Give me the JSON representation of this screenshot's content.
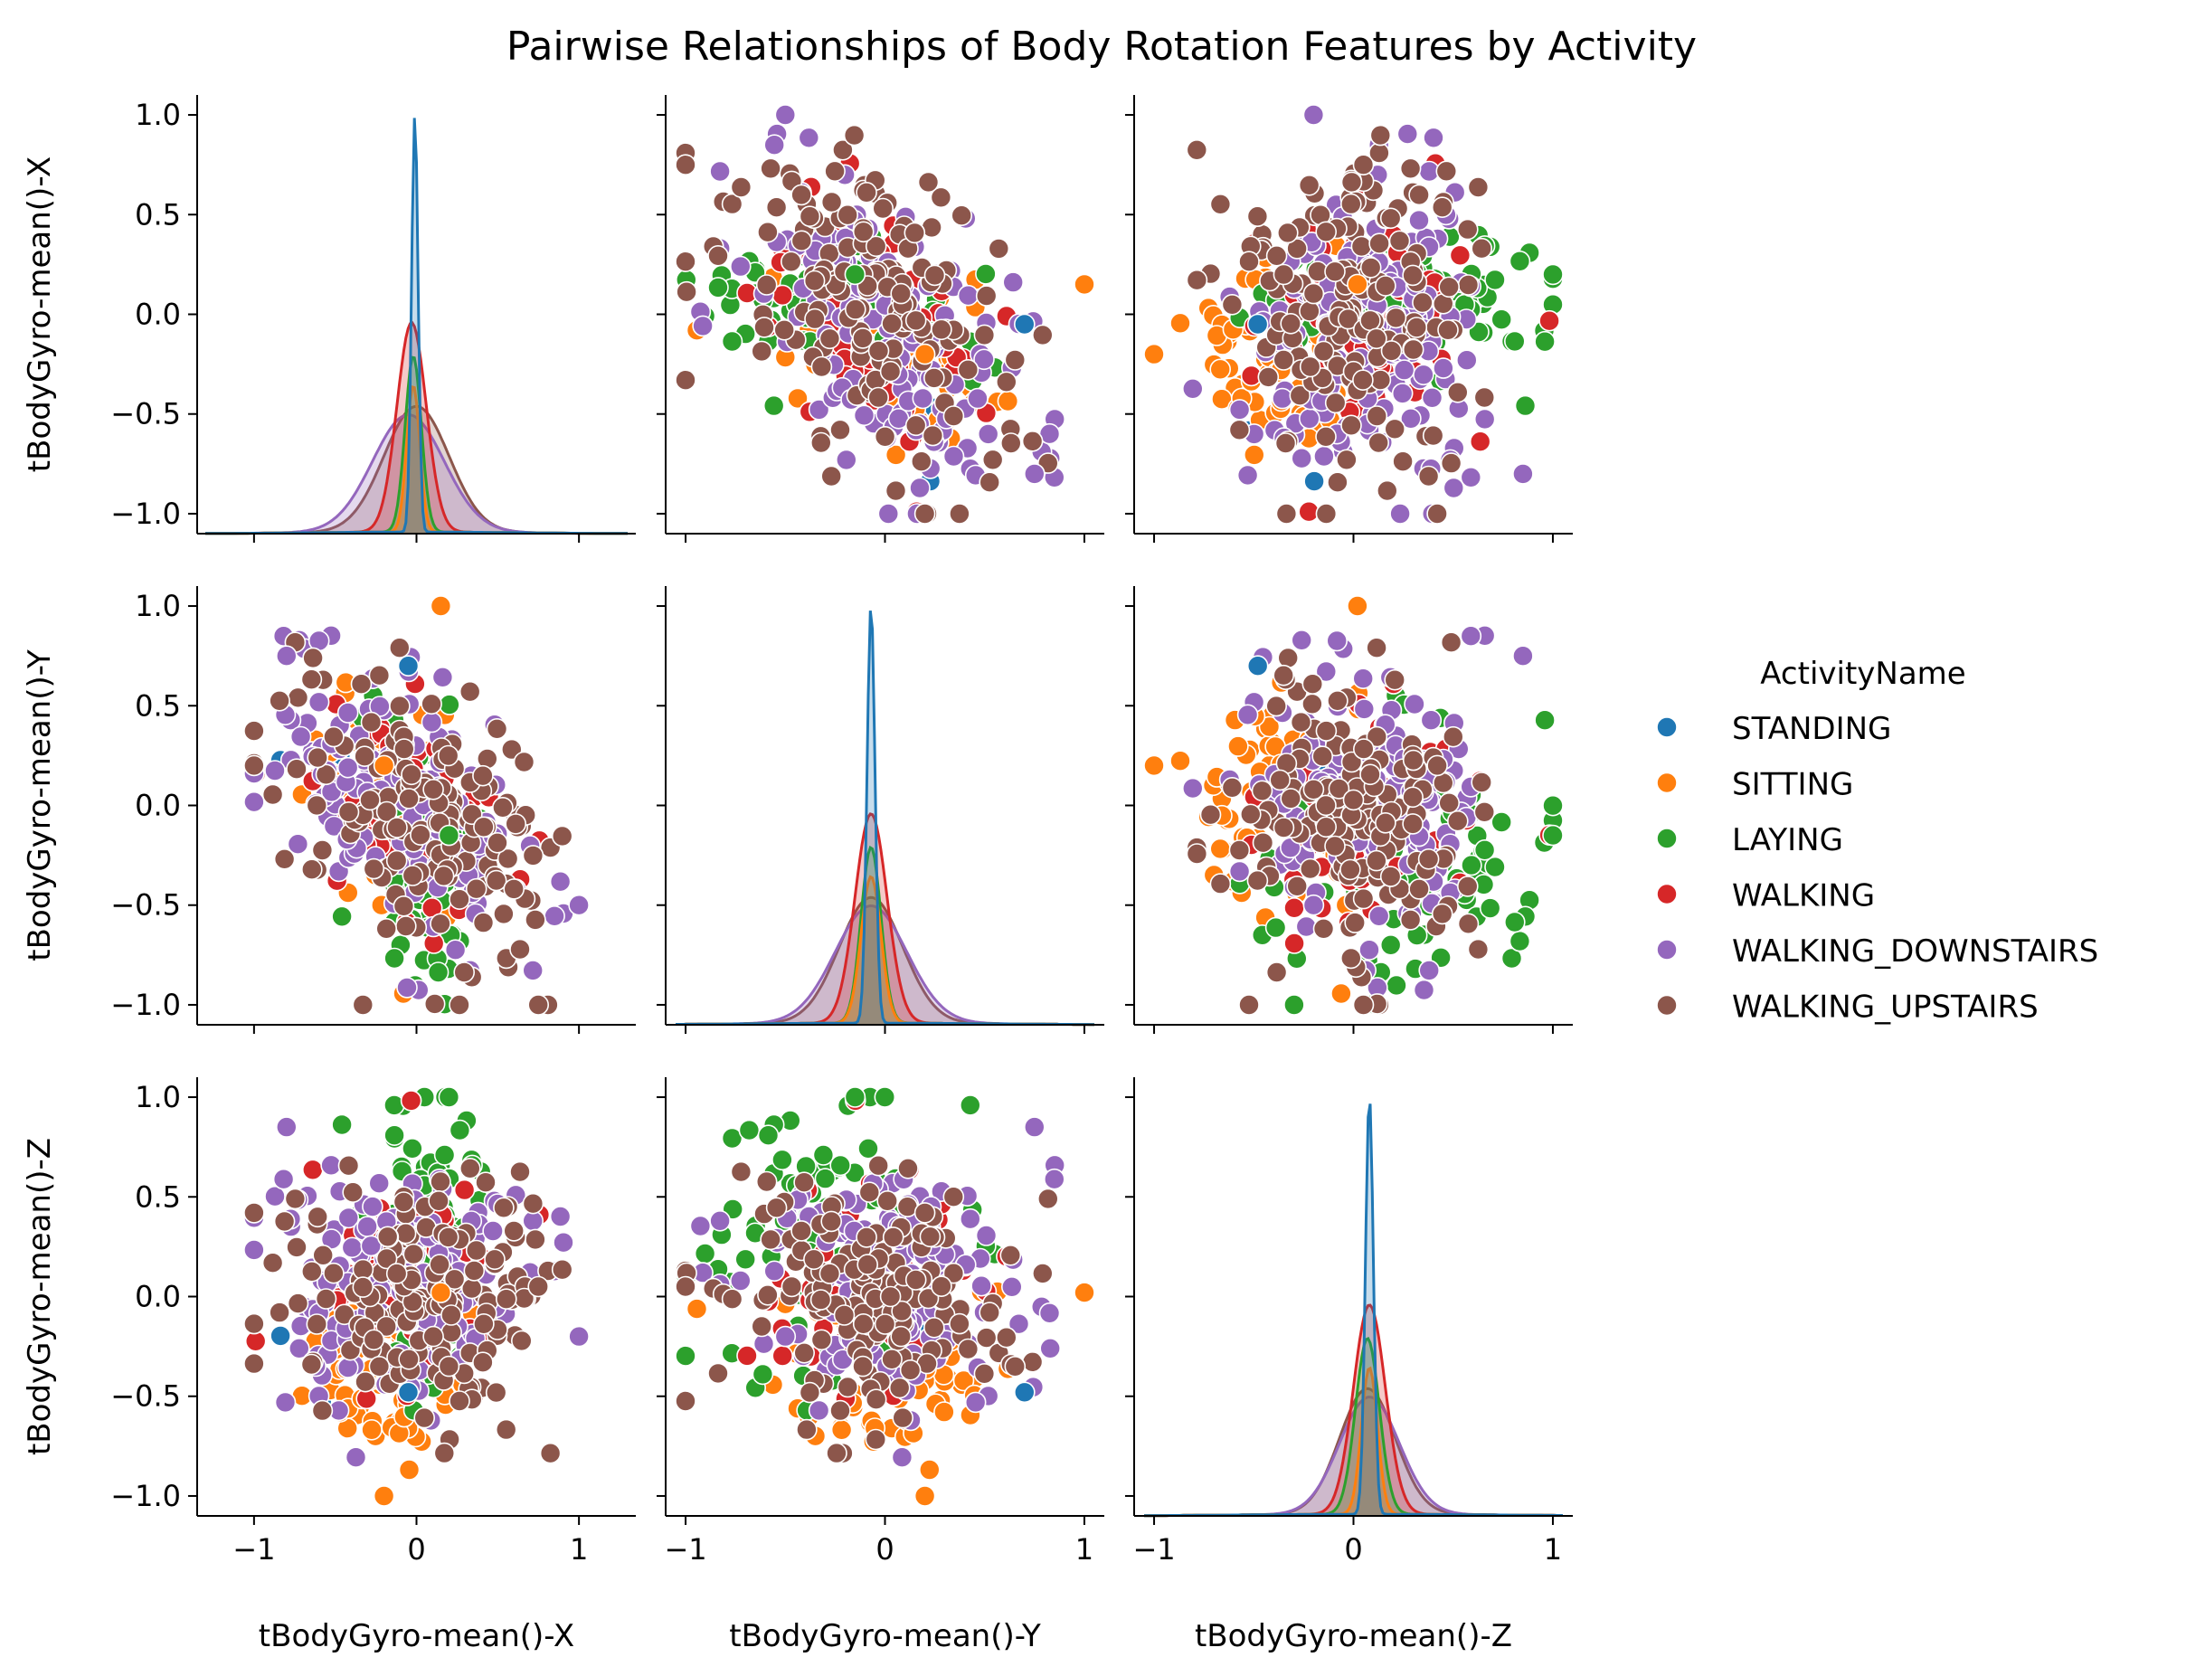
{
  "chart_data": {
    "type": "scatter",
    "subtype": "pairplot",
    "title": "Pairwise Relationships of Body Rotation Features by Activity",
    "variables": [
      "tBodyGyro-mean()-X",
      "tBodyGyro-mean()-Y",
      "tBodyGyro-mean()-Z"
    ],
    "diagonal": "kde",
    "legend": {
      "title": "ActivityName",
      "placement": "right",
      "entries": [
        {
          "name": "STANDING",
          "color": "#1f77b4"
        },
        {
          "name": "SITTING",
          "color": "#ff7f0e"
        },
        {
          "name": "LAYING",
          "color": "#2ca02c"
        },
        {
          "name": "WALKING",
          "color": "#d62728"
        },
        {
          "name": "WALKING_DOWNSTAIRS",
          "color": "#9467bd"
        },
        {
          "name": "WALKING_UPSTAIRS",
          "color": "#8c564b"
        }
      ]
    },
    "axes": {
      "x": [
        {
          "range": [
            -1.35,
            1.35
          ],
          "ticks": [
            "−1",
            "0",
            "1"
          ],
          "tick_values": [
            -1,
            0,
            1
          ]
        },
        {
          "range": [
            -1.1,
            1.1
          ],
          "ticks": [
            "−1",
            "0",
            "1"
          ],
          "tick_values": [
            -1,
            0,
            1
          ]
        },
        {
          "range": [
            -1.1,
            1.1
          ],
          "ticks": [
            "−1",
            "0",
            "1"
          ],
          "tick_values": [
            -1,
            0,
            1
          ]
        }
      ],
      "y": {
        "range": [
          -1.1,
          1.1
        ],
        "ticks": [
          "1.0",
          "0.5",
          "0.0",
          "−0.5",
          "−1.0"
        ],
        "tick_values": [
          1.0,
          0.5,
          0.0,
          -0.5,
          -1.0
        ]
      }
    },
    "distributions": {
      "STANDING": {
        "x_mean": -0.01,
        "x_sd": 0.02,
        "y_mean": -0.07,
        "y_sd": 0.02,
        "z_mean": 0.08,
        "z_sd": 0.02,
        "peak": 1.0
      },
      "SITTING": {
        "x_mean": -0.02,
        "x_sd": 0.04,
        "y_mean": -0.07,
        "y_sd": 0.05,
        "z_mean": 0.08,
        "z_sd": 0.04,
        "peak": 0.35
      },
      "LAYING": {
        "x_mean": -0.02,
        "x_sd": 0.05,
        "y_mean": -0.07,
        "y_sd": 0.05,
        "z_mean": 0.07,
        "z_sd": 0.06,
        "peak": 0.42
      },
      "WALKING": {
        "x_mean": -0.03,
        "x_sd": 0.09,
        "y_mean": -0.07,
        "y_sd": 0.08,
        "z_mean": 0.08,
        "z_sd": 0.08,
        "peak": 0.5
      },
      "WALKING_DOWNSTAIRS": {
        "x_mean": -0.05,
        "x_sd": 0.22,
        "y_mean": -0.07,
        "y_sd": 0.18,
        "z_mean": 0.08,
        "z_sd": 0.15,
        "peak": 0.28
      },
      "WALKING_UPSTAIRS": {
        "x_mean": 0.0,
        "x_sd": 0.2,
        "y_mean": -0.07,
        "y_sd": 0.16,
        "z_mean": 0.07,
        "z_sd": 0.14,
        "peak": 0.3
      }
    },
    "clusters": [
      {
        "name": "STANDING",
        "n": 12,
        "cx": -0.05,
        "cy": 0.1,
        "cz": -0.15,
        "sx": 0.3,
        "sy": 0.2,
        "sz": 0.2
      },
      {
        "name": "SITTING",
        "n": 80,
        "cx": -0.2,
        "cy": 0.05,
        "cz": -0.35,
        "sx": 0.25,
        "sy": 0.3,
        "sz": 0.25
      },
      {
        "name": "LAYING",
        "n": 80,
        "cx": 0.05,
        "cy": -0.3,
        "cz": 0.35,
        "sx": 0.15,
        "sy": 0.35,
        "sz": 0.35
      },
      {
        "name": "WALKING",
        "n": 60,
        "cx": -0.1,
        "cy": 0.0,
        "cz": 0.0,
        "sx": 0.35,
        "sy": 0.3,
        "sz": 0.3
      },
      {
        "name": "WALKING_DOWNSTAIRS",
        "n": 150,
        "cx": -0.05,
        "cy": 0.0,
        "cz": 0.05,
        "sx": 0.4,
        "sy": 0.35,
        "sz": 0.3
      },
      {
        "name": "WALKING_UPSTAIRS",
        "n": 160,
        "cx": 0.0,
        "cy": 0.0,
        "cz": 0.0,
        "sx": 0.4,
        "sy": 0.35,
        "sz": 0.3
      }
    ],
    "extreme_points": [
      {
        "name": "WALKING_DOWNSTAIRS",
        "x": 1.0,
        "y": -0.5,
        "z": -0.2
      },
      {
        "name": "WALKING_UPSTAIRS",
        "x": 0.75,
        "y": -1.0,
        "z": 0.05
      },
      {
        "name": "WALKING_DOWNSTAIRS",
        "x": -0.8,
        "y": 0.75,
        "z": 0.85
      },
      {
        "name": "WALKING_UPSTAIRS",
        "x": -1.0,
        "y": 0.2,
        "z": 0.42
      },
      {
        "name": "SITTING",
        "x": 0.15,
        "y": 1.0,
        "z": 0.02
      },
      {
        "name": "LAYING",
        "x": 0.2,
        "y": -0.15,
        "z": 1.0
      },
      {
        "name": "SITTING",
        "x": -0.2,
        "y": 0.2,
        "z": -1.0
      },
      {
        "name": "STANDING",
        "x": -0.05,
        "y": 0.7,
        "z": -0.48
      }
    ]
  }
}
